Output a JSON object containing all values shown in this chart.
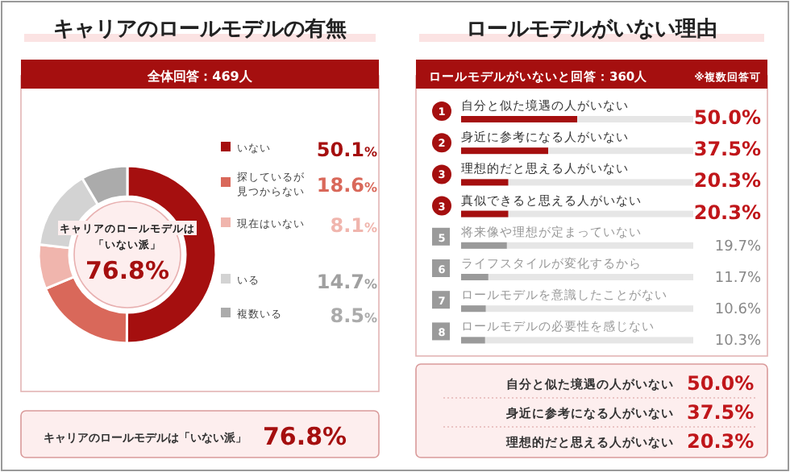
{
  "chart_data": [
    {
      "type": "donut",
      "title": "キャリアのロールモデルの有無",
      "subtitle": "全体回答：469人",
      "categories": [
        "いない",
        "探しているが見つからない",
        "現在はいない",
        "いる",
        "複数いる"
      ],
      "values": [
        50.1,
        18.6,
        8.1,
        14.7,
        8.5
      ],
      "colors": [
        "#a50f0f",
        "#d9685a",
        "#f0b5ad",
        "#d3d3d3",
        "#ababab"
      ],
      "value_labels": [
        "50.1%",
        "18.6%",
        "8.1%",
        "14.7%",
        "8.5%"
      ],
      "legend": "right",
      "annotations": [
        "キャリアのロールモデルは",
        "「いない派」",
        "76.8%",
        "キャリアのロールモデルは「いない派」",
        "76.8%"
      ]
    },
    {
      "type": "bar",
      "orientation": "horizontal",
      "title": "ロールモデルがいない理由",
      "subtitle": "ロールモデルがいないと回答：360人",
      "categories": [
        "自分と似た境遇の人がいない",
        "身近に参考になる人がいない",
        "理想的だと思える人がいない",
        "真似できると思える人がいない",
        "将来像や理想が定まっていない",
        "ライフスタイルが変化するから",
        "ロールモデルを意識したことがない",
        "ロールモデルの必要性を感じない"
      ],
      "values": [
        50.0,
        37.5,
        20.3,
        20.3,
        19.7,
        11.7,
        10.6,
        10.3
      ],
      "colors": [
        "#a50f0f",
        "#a50f0f",
        "#a50f0f",
        "#a50f0f",
        "#9a9a9a",
        "#9a9a9a",
        "#9a9a9a",
        "#9a9a9a"
      ],
      "xlim": [
        0,
        100
      ],
      "tick_labels": false,
      "value_labels": [
        "50.0%",
        "37.5%",
        "20.3%",
        "20.3%",
        "19.7%",
        "11.7%",
        "10.6%",
        "10.3%"
      ],
      "annotations": [
        "※複数回答可",
        "1",
        "2",
        "3",
        "3",
        "5",
        "6",
        "7",
        "8",
        "自分と似た境遇の人がいない",
        "50.0%",
        "身近に参考になる人がいない",
        "37.5%",
        "理想的だと思える人がいない",
        "20.3%"
      ]
    }
  ]
}
